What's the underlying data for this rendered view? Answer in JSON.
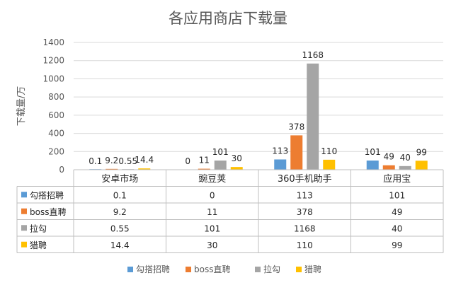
{
  "chart_data": {
    "type": "bar",
    "title": "各应用商店下载量",
    "ylabel": "下载量/万",
    "xlabel": "",
    "ylim": [
      0,
      1400
    ],
    "yticks": [
      0,
      200,
      400,
      600,
      800,
      1000,
      1200,
      1400
    ],
    "grid": true,
    "legend_position": "bottom",
    "categories": [
      "安卓市场",
      "豌豆荚",
      "360手机助手",
      "应用宝"
    ],
    "series": [
      {
        "name": "勾搭招聘",
        "color": "#5B9BD5",
        "values": [
          0.1,
          0,
          113,
          101
        ],
        "labels": [
          "0.1",
          "0",
          "113",
          "101"
        ]
      },
      {
        "name": "boss直聘",
        "color": "#ED7D31",
        "values": [
          9.2,
          11,
          378,
          49
        ],
        "labels": [
          "9.2",
          "11",
          "378",
          "49"
        ]
      },
      {
        "name": "拉勾",
        "color": "#A5A5A5",
        "values": [
          0.55,
          101,
          1168,
          40
        ],
        "labels": [
          "0.55",
          "101",
          "1168",
          "40"
        ]
      },
      {
        "name": "猎聘",
        "color": "#FFC000",
        "values": [
          14.4,
          30,
          110,
          99
        ],
        "labels": [
          "14.4",
          "30",
          "110",
          "99"
        ]
      }
    ],
    "data_table": true
  }
}
